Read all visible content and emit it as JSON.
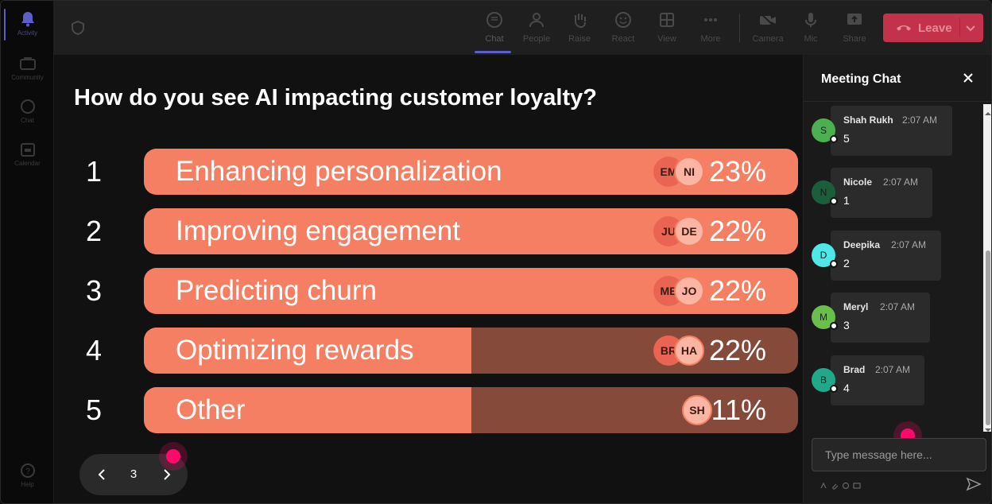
{
  "rail": {
    "items": [
      {
        "label": "Activity",
        "icon": "bell-icon"
      },
      {
        "label": "Community",
        "icon": "community-icon"
      },
      {
        "label": "Chat",
        "icon": "chat-icon"
      },
      {
        "label": "Calendar",
        "icon": "calendar-icon"
      },
      {
        "label": "Help",
        "icon": "help-icon"
      }
    ]
  },
  "toolbar": {
    "chat": "Chat",
    "people": "People",
    "raise": "Raise",
    "react": "React",
    "view": "View",
    "more": "More",
    "camera": "Camera",
    "mic": "Mic",
    "share": "Share",
    "leave": "Leave"
  },
  "poll": {
    "question": "How do you see AI impacting customer loyalty?",
    "options": [
      {
        "num": "1",
        "label": "Enhancing personalization",
        "percent": "23%",
        "fill": 1.0,
        "avatars": [
          "EM",
          "NI"
        ]
      },
      {
        "num": "2",
        "label": "Improving engagement",
        "percent": "22%",
        "fill": 1.0,
        "avatars": [
          "JU",
          "DE"
        ]
      },
      {
        "num": "3",
        "label": "Predicting churn",
        "percent": "22%",
        "fill": 1.0,
        "avatars": [
          "ME",
          "JO"
        ]
      },
      {
        "num": "4",
        "label": "Optimizing rewards",
        "percent": "22%",
        "fill": 0.5,
        "avatars": [
          "BR",
          "HA"
        ]
      },
      {
        "num": "5",
        "label": "Other",
        "percent": "11%",
        "fill": 0.5,
        "avatars": [
          "SH"
        ]
      }
    ]
  },
  "pager": {
    "page": "3"
  },
  "chat": {
    "title": "Meeting Chat",
    "messages": [
      {
        "initial": "S",
        "name": "Shah Rukh",
        "time": "2:07 AM",
        "body": "5",
        "color": "#4caf50"
      },
      {
        "initial": "N",
        "name": "Nicole",
        "time": "2:07 AM",
        "body": "1",
        "color": "#1b5e3b"
      },
      {
        "initial": "D",
        "name": "Deepika",
        "time": "2:07 AM",
        "body": "2",
        "color": "#4ee8e8"
      },
      {
        "initial": "M",
        "name": "Meryl",
        "time": "2:07 AM",
        "body": "3",
        "color": "#6abf4b"
      },
      {
        "initial": "B",
        "name": "Brad",
        "time": "2:07 AM",
        "body": "4",
        "color": "#1fa88a"
      }
    ],
    "input_placeholder": "Type message here..."
  },
  "colors": {
    "bar_fill": "#f47f63",
    "bar_track": "#864a3a",
    "leave": "#c4314b",
    "accent": "#5b5fc7"
  }
}
